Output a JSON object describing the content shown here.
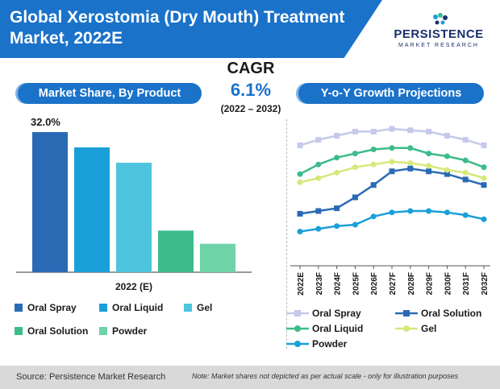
{
  "header": {
    "title": "Global Xerostomia (Dry Mouth) Treatment Market, 2022E",
    "logo_line1": "PERSISTENCE",
    "logo_line2": "MARKET RESEARCH"
  },
  "cagr": {
    "label": "CAGR",
    "value": "6.1%",
    "period": "(2022 – 2032)"
  },
  "left_panel_title": "Market Share, By Product",
  "right_panel_title": "Y-o-Y Growth Projections",
  "footer": {
    "source": "Source: Persistence Market Research",
    "note": "Note: Market shares not depicted as per actual scale - only for illustration purposes"
  },
  "colors": {
    "brand_blue": "#1a72c9",
    "oral_spray_bar": "#2a6ab5",
    "oral_liquid_bar": "#1a9fd9",
    "gel_bar": "#4ec4df",
    "oral_solution_bar": "#3cbc8a",
    "powder_bar": "#6fd3a8"
  },
  "chart_data": [
    {
      "type": "bar",
      "categories": [
        "Oral Spray",
        "Oral Liquid",
        "Gel",
        "Oral Solution",
        "Powder"
      ],
      "values": [
        32.0,
        28.5,
        25.0,
        9.5,
        6.5
      ],
      "value_label": "32.0%",
      "xlabel": "2022 (E)",
      "ylim": [
        0,
        35
      ],
      "legend": [
        "Oral Spray",
        "Oral Liquid",
        "Gel",
        "Oral Solution",
        "Powder"
      ],
      "legend_position": "bottom"
    },
    {
      "type": "line",
      "x": [
        "2022E",
        "2023F",
        "2024F",
        "2025F",
        "2026F",
        "2027F",
        "2028F",
        "2029F",
        "2030F",
        "2031F",
        "2032F"
      ],
      "ylim": [
        0,
        100
      ],
      "grid": false,
      "legend_position": "bottom",
      "series": [
        {
          "name": "Oral Spray",
          "color": "#c5c9ea",
          "values": [
            88,
            92,
            95,
            98,
            98,
            100,
            99,
            98,
            95,
            92,
            88
          ]
        },
        {
          "name": "Oral Solution",
          "color": "#2a6ab5",
          "values": [
            38,
            40,
            42,
            50,
            59,
            69,
            71,
            69,
            67,
            63,
            59
          ]
        },
        {
          "name": "Oral Liquid",
          "color": "#3cbc8a",
          "values": [
            67,
            74,
            79,
            82,
            85,
            86,
            86,
            82,
            80,
            77,
            72
          ]
        },
        {
          "name": "Gel",
          "color": "#d6e87a",
          "values": [
            61,
            64,
            68,
            72,
            74,
            76,
            75,
            73,
            70,
            68,
            64
          ]
        },
        {
          "name": "Powder",
          "color": "#1a9fd9",
          "values": [
            25,
            27,
            29,
            30,
            36,
            39,
            40,
            40,
            39,
            37,
            34
          ]
        }
      ]
    }
  ]
}
